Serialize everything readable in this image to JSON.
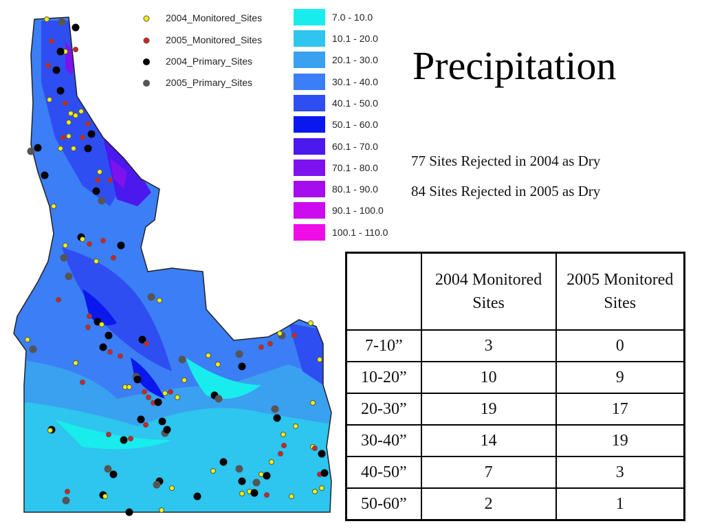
{
  "title": "Precipitation",
  "notes": {
    "rejected_2004": "77 Sites Rejected in 2004 as Dry",
    "rejected_2005": "84 Sites Rejected in 2005 as Dry"
  },
  "legend": {
    "symbols": [
      {
        "label": "2004_Monitored_Sites",
        "color": "#f2f20a",
        "edge": "#555555"
      },
      {
        "label": "2005_Monitored_Sites",
        "color": "#d92020",
        "edge": "#555555"
      },
      {
        "label": "2004_Primary_Sites",
        "color": "#000000",
        "edge": "#000000"
      },
      {
        "label": "2005_Primary_Sites",
        "color": "#555555",
        "edge": "#555555"
      }
    ],
    "ranges": [
      {
        "label": "7.0 - 10.0",
        "color": "#19ecec"
      },
      {
        "label": "10.1 - 20.0",
        "color": "#2ec5ee"
      },
      {
        "label": "20.1 - 30.0",
        "color": "#3aa0f0"
      },
      {
        "label": "30.1 - 40.0",
        "color": "#3c7ef5"
      },
      {
        "label": "40.1 - 50.0",
        "color": "#2e4ef2"
      },
      {
        "label": "50.1 - 60.0",
        "color": "#0a18ee"
      },
      {
        "label": "60.1 - 70.0",
        "color": "#4b18ee"
      },
      {
        "label": "70.1 - 80.0",
        "color": "#7e12ee"
      },
      {
        "label": "80.1 - 90.0",
        "color": "#a50cee"
      },
      {
        "label": "90.1 - 100.0",
        "color": "#cc0cee"
      },
      {
        "label": "100.1 - 110.0",
        "color": "#f00ee8"
      }
    ]
  },
  "table": {
    "header": [
      "",
      "2004 Monitored Sites",
      "2005 Monitored Sites"
    ],
    "rows": [
      [
        "7-10”",
        "3",
        "0"
      ],
      [
        "10-20”",
        "10",
        "9"
      ],
      [
        "20-30”",
        "19",
        "17"
      ],
      [
        "30-40”",
        "14",
        "19"
      ],
      [
        "40-50”",
        "7",
        "3"
      ],
      [
        "50-60”",
        "2",
        "1"
      ]
    ]
  }
}
